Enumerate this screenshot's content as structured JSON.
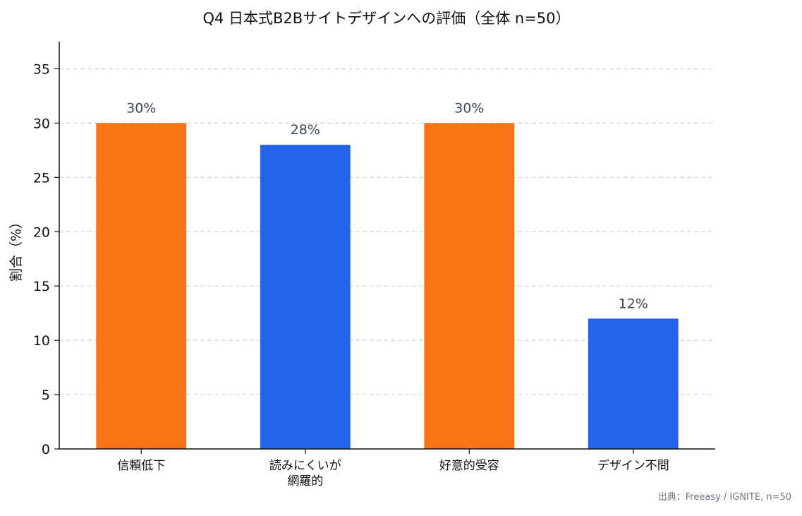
{
  "chart_data": {
    "type": "bar",
    "title": "Q4 日本式B2Bサイトデザインへの評価（全体 n=50）",
    "xlabel": "",
    "ylabel": "割合（%）",
    "ylim": [
      0,
      37.5
    ],
    "yticks": [
      0,
      5,
      10,
      15,
      20,
      25,
      30,
      35
    ],
    "grid": "horizontal-dashed",
    "categories": [
      [
        "信頼低下"
      ],
      [
        "読みにくいが",
        "網羅的"
      ],
      [
        "好意的受容"
      ],
      [
        "デザイン不問"
      ]
    ],
    "values": [
      30,
      28,
      30,
      12
    ],
    "data_labels": [
      "30%",
      "28%",
      "30%",
      "12%"
    ],
    "bar_colors": [
      "#f97316",
      "#2563eb",
      "#f97316",
      "#2563eb"
    ]
  },
  "source_note": "出典：Freeasy / IGNITE, n=50"
}
